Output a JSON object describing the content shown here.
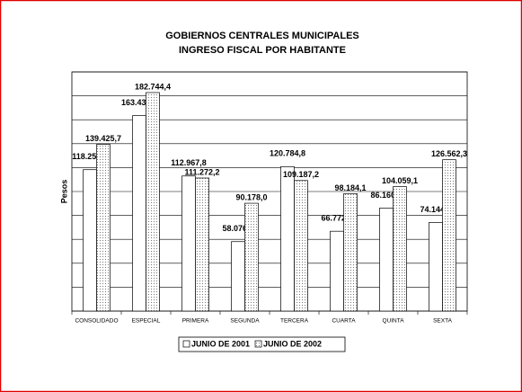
{
  "chart_data": {
    "type": "bar",
    "title": "GOBIERNOS CENTRALES MUNICIPALES",
    "subtitle": "INGRESO FISCAL POR HABITANTE",
    "y_label": "Pesos",
    "categories": [
      "CONSOLIDADO",
      "ESPECIAL",
      "PRIMERA",
      "SEGUNDA",
      "TERCERA",
      "CUARTA",
      "QUINTA",
      "SEXTA"
    ],
    "series": [
      {
        "name": "JUNIO DE 2001",
        "color": "#ffffff",
        "values": [
          118251.9,
          163438.0,
          112967.8,
          58076.0,
          120784.8,
          66772.5,
          86160.7,
          74144.9
        ],
        "value_labels": [
          "118.251,9",
          "163.438,0",
          "112.967,8",
          "58.076,0",
          "120.784,8",
          "66.772,5",
          "86.160,7",
          "74.144,9"
        ]
      },
      {
        "name": "JUNIO DE 2002",
        "color": "#d8d8d8",
        "values": [
          139425.7,
          182744.4,
          111272.2,
          90178.0,
          109187.2,
          98184.1,
          104059.1,
          126562.3
        ],
        "value_labels": [
          "139.425,7",
          "182.744,4",
          "111.272,2",
          "90.178,0",
          "109.187,2",
          "98.184,1",
          "104.059,1",
          "126.562,3"
        ]
      }
    ],
    "ylim": [
      0,
      200000
    ],
    "yticks": [
      0,
      20000,
      40000,
      60000,
      80000,
      100000,
      120000,
      140000,
      160000,
      180000,
      200000
    ],
    "grid": true
  }
}
